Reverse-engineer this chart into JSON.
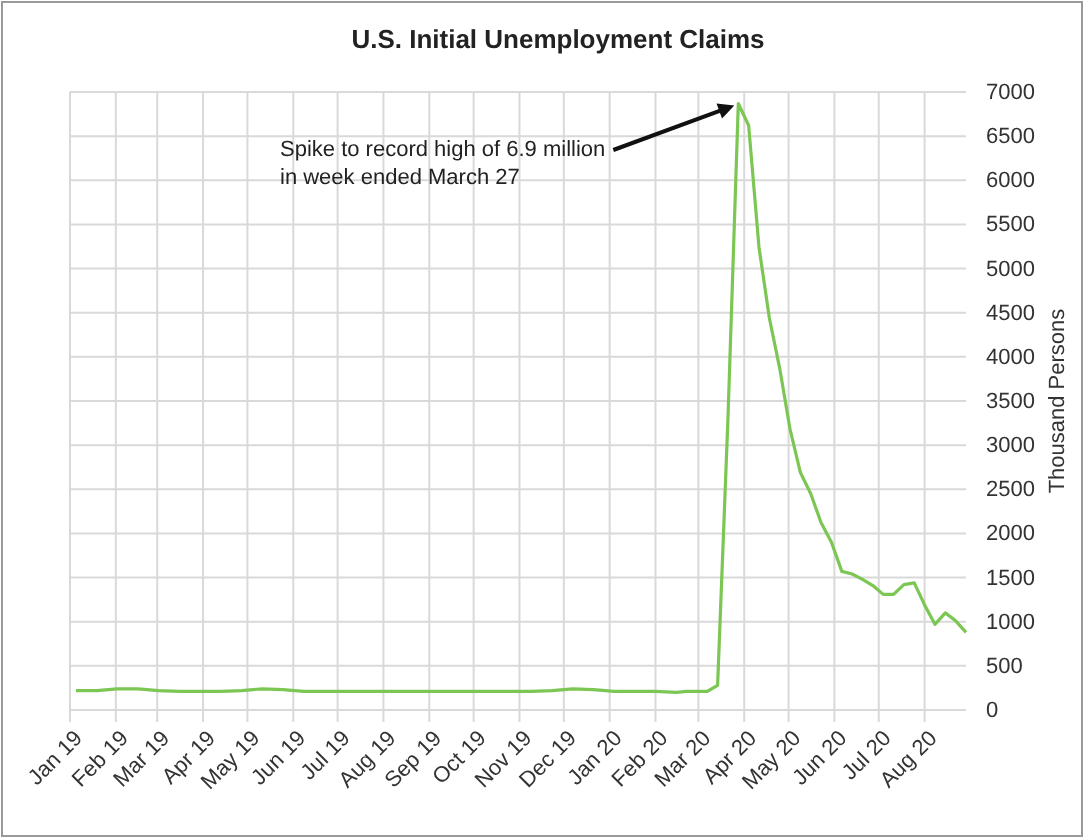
{
  "chart_data": {
    "type": "line",
    "title": "U.S. Initial Unemployment Claims",
    "ylabel": "Thousand Persons",
    "x": [
      "2019-01-05",
      "2019-01-19",
      "2019-02-02",
      "2019-02-16",
      "2019-03-02",
      "2019-03-16",
      "2019-03-30",
      "2019-04-13",
      "2019-04-27",
      "2019-05-11",
      "2019-05-25",
      "2019-06-08",
      "2019-06-22",
      "2019-07-06",
      "2019-07-20",
      "2019-08-03",
      "2019-08-17",
      "2019-08-31",
      "2019-09-14",
      "2019-09-28",
      "2019-10-12",
      "2019-10-26",
      "2019-11-09",
      "2019-11-23",
      "2019-12-07",
      "2019-12-21",
      "2020-01-04",
      "2020-01-18",
      "2020-02-01",
      "2020-02-15",
      "2020-02-22",
      "2020-02-29",
      "2020-03-07",
      "2020-03-14",
      "2020-03-21",
      "2020-03-28",
      "2020-04-04",
      "2020-04-11",
      "2020-04-18",
      "2020-04-25",
      "2020-05-02",
      "2020-05-09",
      "2020-05-16",
      "2020-05-23",
      "2020-05-30",
      "2020-06-06",
      "2020-06-13",
      "2020-06-20",
      "2020-06-27",
      "2020-07-04",
      "2020-07-11",
      "2020-07-18",
      "2020-07-25",
      "2020-08-01",
      "2020-08-08",
      "2020-08-15",
      "2020-08-22",
      "2020-08-29"
    ],
    "series": [
      {
        "color": "#7cc653",
        "values": [
          220,
          220,
          240,
          240,
          220,
          210,
          210,
          210,
          220,
          240,
          230,
          210,
          210,
          210,
          210,
          210,
          210,
          210,
          210,
          210,
          210,
          210,
          210,
          220,
          240,
          230,
          210,
          210,
          210,
          200,
          210,
          210,
          210,
          280,
          3300,
          6870,
          6620,
          5240,
          4440,
          3870,
          3180,
          2690,
          2450,
          2120,
          1900,
          1570,
          1540,
          1480,
          1410,
          1310,
          1310,
          1420,
          1440,
          1190,
          970,
          1100,
          1010,
          880
        ]
      }
    ],
    "xlim": [
      "2019-01-01",
      "2020-08-29"
    ],
    "xticks": [
      {
        "value": "2019-01-01",
        "label": "Jan 19"
      },
      {
        "value": "2019-02-01",
        "label": "Feb 19"
      },
      {
        "value": "2019-03-01",
        "label": "Mar 19"
      },
      {
        "value": "2019-04-01",
        "label": "Apr 19"
      },
      {
        "value": "2019-05-01",
        "label": "May 19"
      },
      {
        "value": "2019-06-01",
        "label": "Jun 19"
      },
      {
        "value": "2019-07-01",
        "label": "Jul 19"
      },
      {
        "value": "2019-08-01",
        "label": "Aug 19"
      },
      {
        "value": "2019-09-01",
        "label": "Sep 19"
      },
      {
        "value": "2019-10-01",
        "label": "Oct 19"
      },
      {
        "value": "2019-11-01",
        "label": "Nov 19"
      },
      {
        "value": "2019-12-01",
        "label": "Dec 19"
      },
      {
        "value": "2020-01-01",
        "label": "Jan 20"
      },
      {
        "value": "2020-02-01",
        "label": "Feb 20"
      },
      {
        "value": "2020-03-01",
        "label": "Mar 20"
      },
      {
        "value": "2020-04-01",
        "label": "Apr 20"
      },
      {
        "value": "2020-05-01",
        "label": "May 20"
      },
      {
        "value": "2020-06-01",
        "label": "Jun 20"
      },
      {
        "value": "2020-07-01",
        "label": "Jul 20"
      },
      {
        "value": "2020-08-01",
        "label": "Aug 20"
      }
    ],
    "ylim": [
      0,
      7000
    ],
    "yticks": [
      0,
      500,
      1000,
      1500,
      2000,
      2500,
      3000,
      3500,
      4000,
      4500,
      5000,
      5500,
      6000,
      6500,
      7000
    ],
    "grid": true,
    "marker": "none",
    "line_style": "solid",
    "annotations": [
      {
        "text": "Spike to record high of 6.9 million\nin week ended March 27",
        "x": "2020-03-28",
        "y": 6870
      }
    ]
  }
}
